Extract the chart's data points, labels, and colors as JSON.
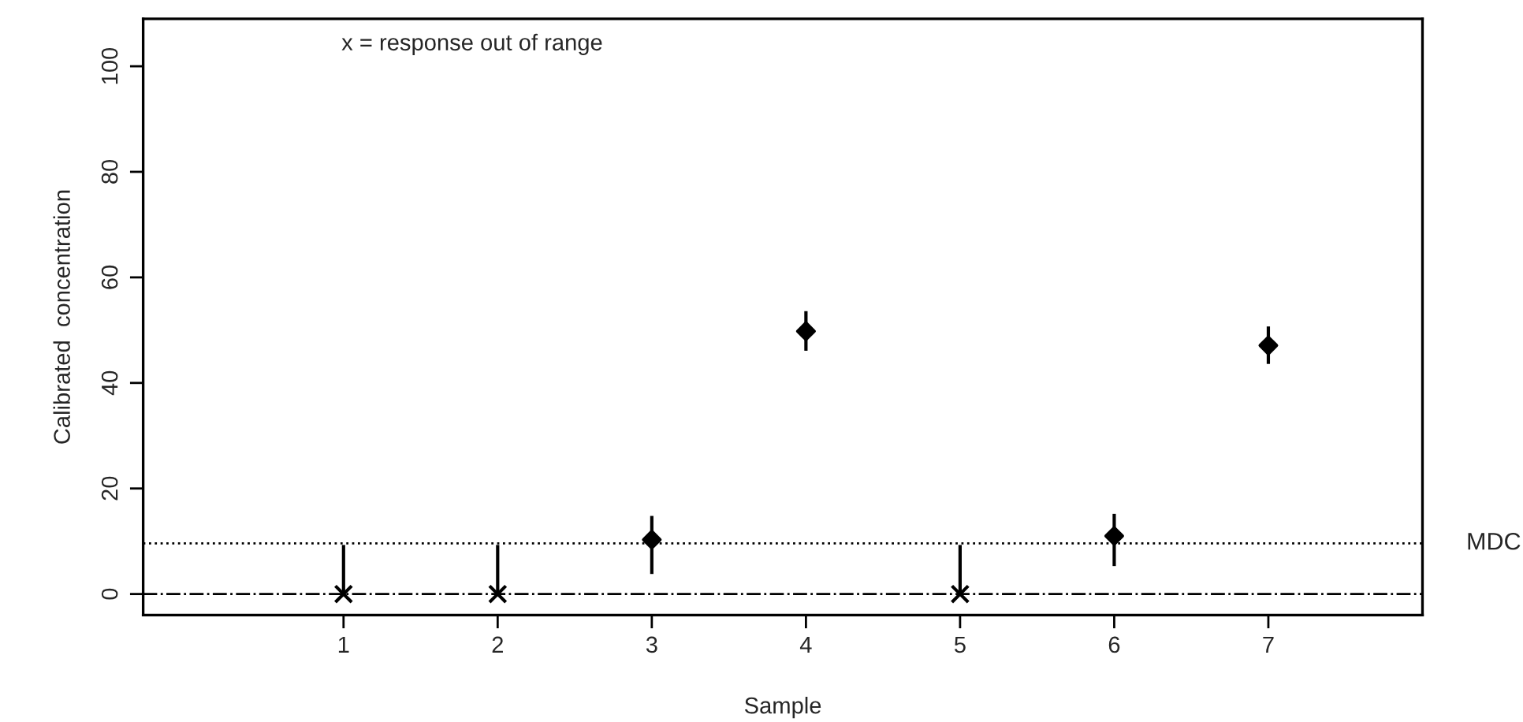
{
  "chart_data": {
    "type": "scatter",
    "xlabel": "Sample",
    "ylabel": "Calibrated  concentration",
    "annotations": [
      "x = response out of range"
    ],
    "xlim": [
      -0.3,
      8
    ],
    "xticks": [
      1,
      2,
      3,
      4,
      5,
      6,
      7
    ],
    "ylim": [
      -4,
      109
    ],
    "yticks": [
      0,
      20,
      40,
      60,
      80,
      100
    ],
    "grid": false,
    "legend": false,
    "series": [
      {
        "color": "#000000",
        "marker": "cross",
        "x": [
          1,
          2,
          5
        ],
        "values": [
          0,
          0,
          0
        ],
        "errors": [
          [
            0,
            9.3
          ],
          [
            0,
            9.3
          ],
          [
            0,
            9.3
          ]
        ]
      },
      {
        "color": "#000000",
        "marker": "diamond",
        "x": [
          3,
          4,
          6,
          7
        ],
        "values": [
          10.3,
          49.8,
          11.0,
          47.1
        ],
        "errors": [
          [
            3.8,
            14.8
          ],
          [
            46.1,
            53.6
          ],
          [
            5.3,
            15.2
          ],
          [
            43.6,
            50.7
          ]
        ]
      }
    ],
    "ref_lines": [
      {
        "axis": "y",
        "value": 9.6,
        "label": "MDC",
        "color": "#000000",
        "line_style": "dotted"
      },
      {
        "axis": "y",
        "value": 0,
        "label": null,
        "color": "#000000",
        "line_style": "dashdot"
      }
    ]
  }
}
